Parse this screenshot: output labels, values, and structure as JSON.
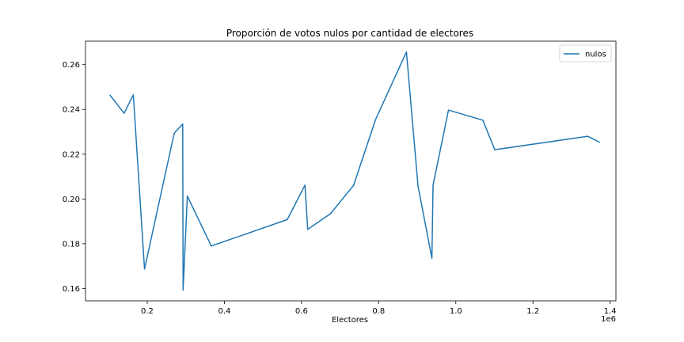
{
  "chart_data": {
    "type": "line",
    "title": "Proporción de votos nulos por cantidad de electores",
    "xlabel": "Electores",
    "ylabel": "",
    "x_offset_label": "1e6",
    "xlim": [
      0.04,
      1.415
    ],
    "ylim": [
      0.1545,
      0.2705
    ],
    "xticks": [
      0.2,
      0.4,
      0.6,
      0.8,
      1.0,
      1.2,
      1.4
    ],
    "xtick_labels": [
      "0.2",
      "0.4",
      "0.6",
      "0.8",
      "1.0",
      "1.2",
      "1.4"
    ],
    "yticks": [
      0.16,
      0.18,
      0.2,
      0.22,
      0.24,
      0.26
    ],
    "ytick_labels": [
      "0.16",
      "0.18",
      "0.20",
      "0.22",
      "0.24",
      "0.26"
    ],
    "grid": false,
    "legend_position": "top-right",
    "series": [
      {
        "name": "nulos",
        "color": "#1f77b4",
        "x": [
          0.103,
          0.14,
          0.164,
          0.193,
          0.27,
          0.292,
          0.293,
          0.304,
          0.366,
          0.45,
          0.563,
          0.609,
          0.616,
          0.675,
          0.735,
          0.792,
          0.872,
          0.902,
          0.938,
          0.941,
          0.981,
          1.07,
          1.101,
          1.342,
          1.373
        ],
        "values": [
          0.2465,
          0.2383,
          0.2465,
          0.1687,
          0.2294,
          0.2335,
          0.1593,
          0.2013,
          0.179,
          0.184,
          0.1908,
          0.2062,
          0.1864,
          0.1934,
          0.2061,
          0.2355,
          0.2657,
          0.2058,
          0.1735,
          0.2062,
          0.2397,
          0.2352,
          0.222,
          0.228,
          0.2253
        ]
      }
    ]
  }
}
